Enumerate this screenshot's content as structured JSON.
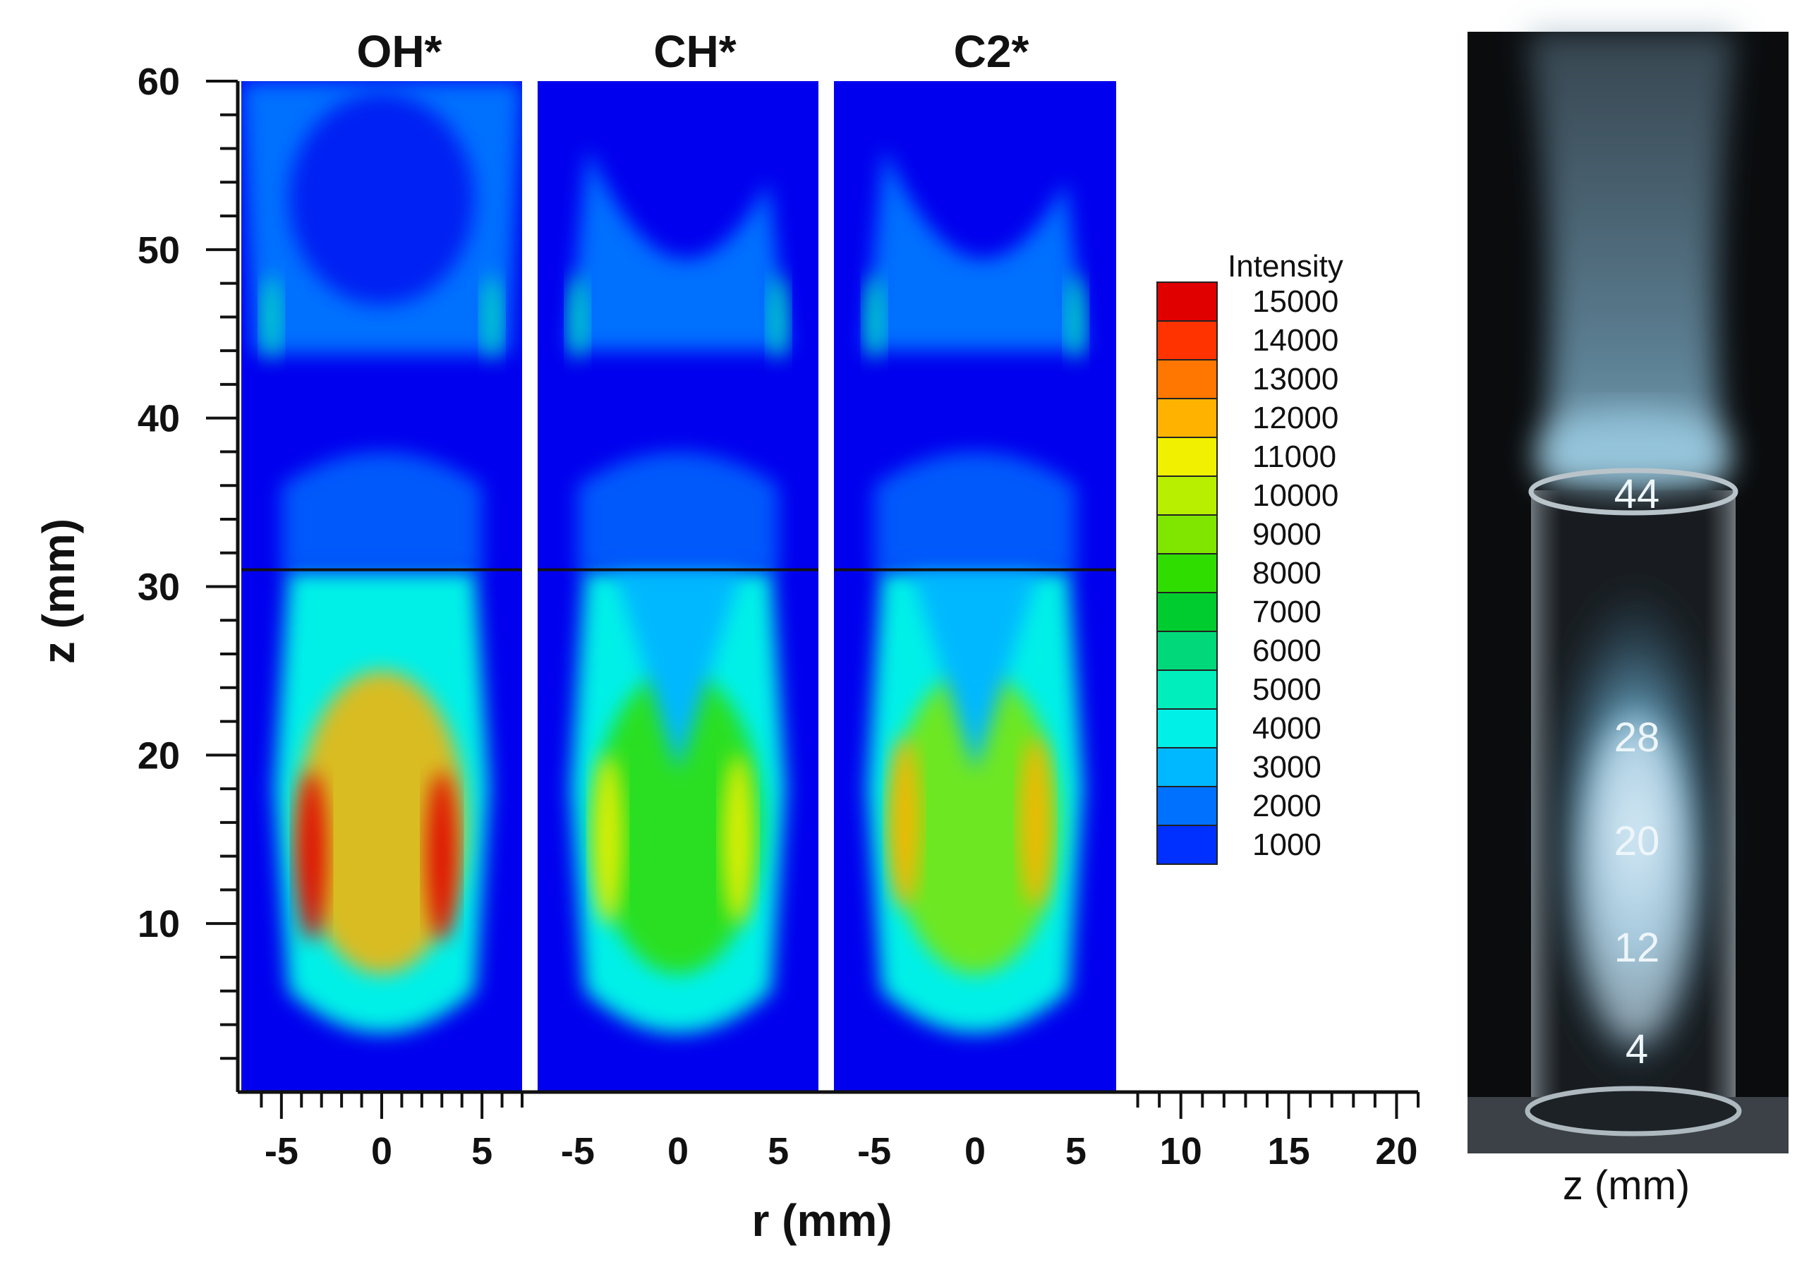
{
  "chart_data": {
    "type": "heatmap",
    "panels": [
      {
        "title": "OH*",
        "id": "oh",
        "peak_intensity": 15000,
        "peak_r_mm": [
          -3.5,
          3.0
        ],
        "peak_z_mm": [
          14,
          14
        ]
      },
      {
        "title": "CH*",
        "id": "ch",
        "peak_intensity": 11000,
        "peak_r_mm": [
          -3.5,
          3.0
        ],
        "peak_z_mm": [
          15,
          15
        ]
      },
      {
        "title": "C2*",
        "id": "c2",
        "peak_intensity": 12000,
        "peak_r_mm": [
          -3.5,
          3.0
        ],
        "peak_z_mm": [
          16,
          16
        ]
      }
    ],
    "x_axis": {
      "label": "r (mm)",
      "panel_range": [
        -7,
        7
      ],
      "ticks": [
        "-5",
        "0",
        "5",
        "10",
        "15",
        "20"
      ],
      "tick_values": [
        -5,
        0,
        5,
        10,
        15,
        20
      ]
    },
    "y_axis": {
      "label": "z (mm)",
      "range": [
        0,
        60
      ],
      "ticks": [
        "10",
        "20",
        "30",
        "40",
        "50",
        "60"
      ],
      "tick_values": [
        10,
        20,
        30,
        40,
        50,
        60
      ]
    },
    "divider_z_mm": 31,
    "colorbar": {
      "title": "Intensity",
      "levels": [
        "15000",
        "14000",
        "13000",
        "12000",
        "11000",
        "10000",
        "9000",
        "8000",
        "7000",
        "6000",
        "5000",
        "4000",
        "3000",
        "2000",
        "1000"
      ],
      "colors": [
        "#e00000",
        "#ff3300",
        "#ff7700",
        "#ffb300",
        "#f0f000",
        "#b8ee00",
        "#80e600",
        "#30dd00",
        "#00cc30",
        "#00d87a",
        "#00eebb",
        "#00f0e8",
        "#00b8ff",
        "#0070ff",
        "#0030ff"
      ]
    }
  },
  "photo": {
    "labels": [
      "44",
      "28",
      "20",
      "12",
      "4"
    ],
    "label_z_mm": [
      44,
      28,
      20,
      12,
      4
    ],
    "axis_label": "z (mm)"
  },
  "colors": {
    "background_field": "#0000ee",
    "tick_color": "#111111"
  }
}
